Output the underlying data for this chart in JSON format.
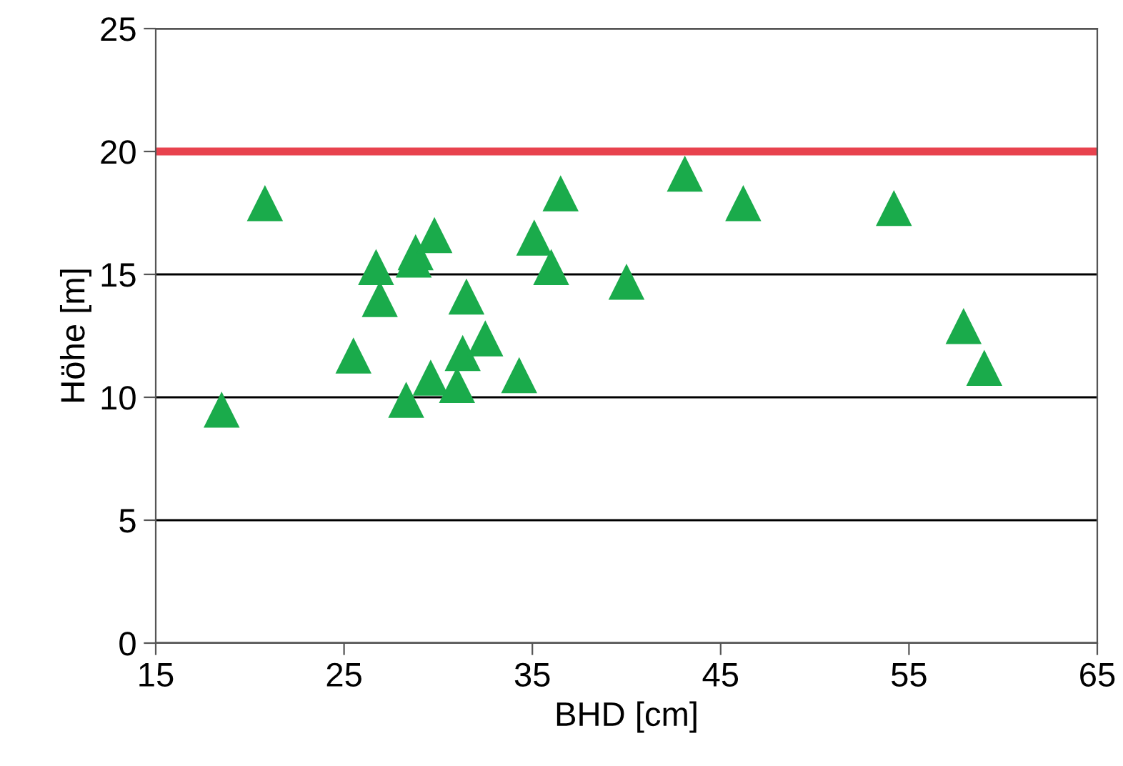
{
  "chart_data": {
    "type": "scatter",
    "xlabel": "BHD [cm]",
    "ylabel": "Höhe [m]",
    "x": [
      18.5,
      20.8,
      25.5,
      26.7,
      26.9,
      28.3,
      28.7,
      28.8,
      29.8,
      29.6,
      31.0,
      31.3,
      31.5,
      32.5,
      34.3,
      35.1,
      36.0,
      36.5,
      40.0,
      43.1,
      46.2,
      54.2,
      57.9,
      59.0
    ],
    "series": [
      {
        "color": "#1aab4b",
        "values": [
          9.5,
          17.9,
          11.7,
          15.3,
          14.0,
          9.9,
          15.6,
          15.9,
          16.6,
          10.8,
          10.5,
          11.8,
          14.1,
          12.4,
          10.9,
          16.5,
          15.3,
          18.3,
          14.7,
          19.1,
          17.9,
          17.7,
          12.9,
          11.2
        ]
      }
    ],
    "marker": "triangle",
    "xlim": [
      15,
      65
    ],
    "xticks": [
      15,
      25,
      35,
      45,
      55,
      65
    ],
    "ylim": [
      0,
      25
    ],
    "yticks": [
      0,
      5,
      10,
      15,
      20,
      25
    ],
    "grid": "y",
    "ref_lines": [
      {
        "axis": "y",
        "value": 20,
        "color": "#e8424e"
      }
    ]
  }
}
